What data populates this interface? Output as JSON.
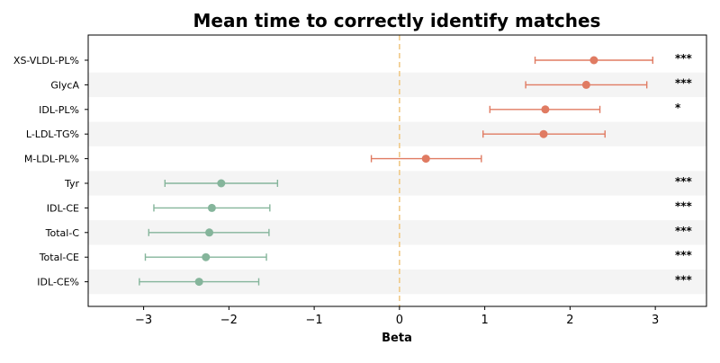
{
  "chart_data": {
    "type": "scatter",
    "subtype": "forest-plot",
    "title": "Mean time to correctly identify matches",
    "xlabel": "Beta",
    "ylabel": "",
    "xlim": [
      -3.65,
      3.6
    ],
    "x_ticks": [
      -3,
      -2,
      -1,
      0,
      1,
      2,
      3
    ],
    "x_tick_labels": [
      "−3",
      "−2",
      "−1",
      "0",
      "1",
      "2",
      "3"
    ],
    "reference_line": {
      "x": 0,
      "style": "dashed",
      "color": "#f0c987"
    },
    "colors": {
      "positive": "#e07b62",
      "negative": "#85b59b",
      "band": "#f4f4f4"
    },
    "grid": false,
    "rows": [
      {
        "label": "XS-VLDL-PL%",
        "beta": 2.28,
        "ci_low": 1.59,
        "ci_high": 2.97,
        "sig": "***"
      },
      {
        "label": "GlycA",
        "beta": 2.19,
        "ci_low": 1.48,
        "ci_high": 2.9,
        "sig": "***"
      },
      {
        "label": "IDL-PL%",
        "beta": 1.71,
        "ci_low": 1.06,
        "ci_high": 2.35,
        "sig": "*"
      },
      {
        "label": "L-LDL-TG%",
        "beta": 1.69,
        "ci_low": 0.98,
        "ci_high": 2.41,
        "sig": ""
      },
      {
        "label": "M-LDL-PL%",
        "beta": 0.31,
        "ci_low": -0.33,
        "ci_high": 0.96,
        "sig": ""
      },
      {
        "label": "Tyr",
        "beta": -2.09,
        "ci_low": -2.75,
        "ci_high": -1.43,
        "sig": "***"
      },
      {
        "label": "IDL-CE",
        "beta": -2.2,
        "ci_low": -2.88,
        "ci_high": -1.52,
        "sig": "***"
      },
      {
        "label": "Total-C",
        "beta": -2.23,
        "ci_low": -2.94,
        "ci_high": -1.53,
        "sig": "***"
      },
      {
        "label": "Total-CE",
        "beta": -2.27,
        "ci_low": -2.98,
        "ci_high": -1.56,
        "sig": "***"
      },
      {
        "label": "IDL-CE%",
        "beta": -2.35,
        "ci_low": -3.05,
        "ci_high": -1.65,
        "sig": "***"
      }
    ]
  }
}
